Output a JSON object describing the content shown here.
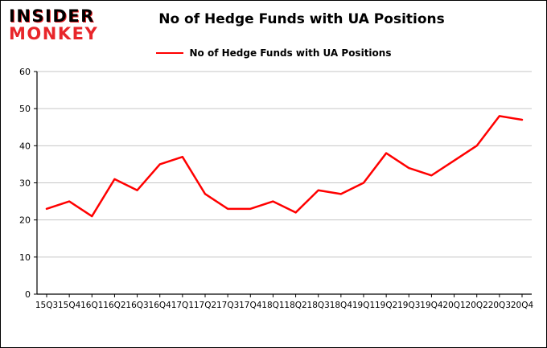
{
  "logo": {
    "line1": "INSIDER",
    "line2": "MONKEY"
  },
  "chart_data": {
    "type": "line",
    "title": "No of Hedge Funds with UA Positions",
    "xlabel": "",
    "ylabel": "",
    "categories": [
      "15Q3",
      "15Q4",
      "16Q1",
      "16Q2",
      "16Q3",
      "16Q4",
      "17Q1",
      "17Q2",
      "17Q3",
      "17Q4",
      "18Q1",
      "18Q2",
      "18Q3",
      "18Q4",
      "19Q1",
      "19Q2",
      "19Q3",
      "19Q4",
      "20Q1",
      "20Q2",
      "20Q3",
      "20Q4"
    ],
    "series": [
      {
        "name": "No of Hedge Funds with UA Positions",
        "color": "#ff0000",
        "values": [
          23,
          25,
          21,
          31,
          28,
          35,
          37,
          27,
          23,
          23,
          25,
          22,
          28,
          27,
          30,
          38,
          34,
          32,
          36,
          40,
          48,
          47
        ]
      }
    ],
    "ylim": [
      0,
      60
    ],
    "yticks": [
      0,
      10,
      20,
      30,
      40,
      50,
      60
    ],
    "grid": true,
    "legend_position": "top-center"
  },
  "colors": {
    "line": "#ff0000",
    "grid": "#c6c6c6",
    "axis": "#000000",
    "logo_red": "#e8262a"
  }
}
